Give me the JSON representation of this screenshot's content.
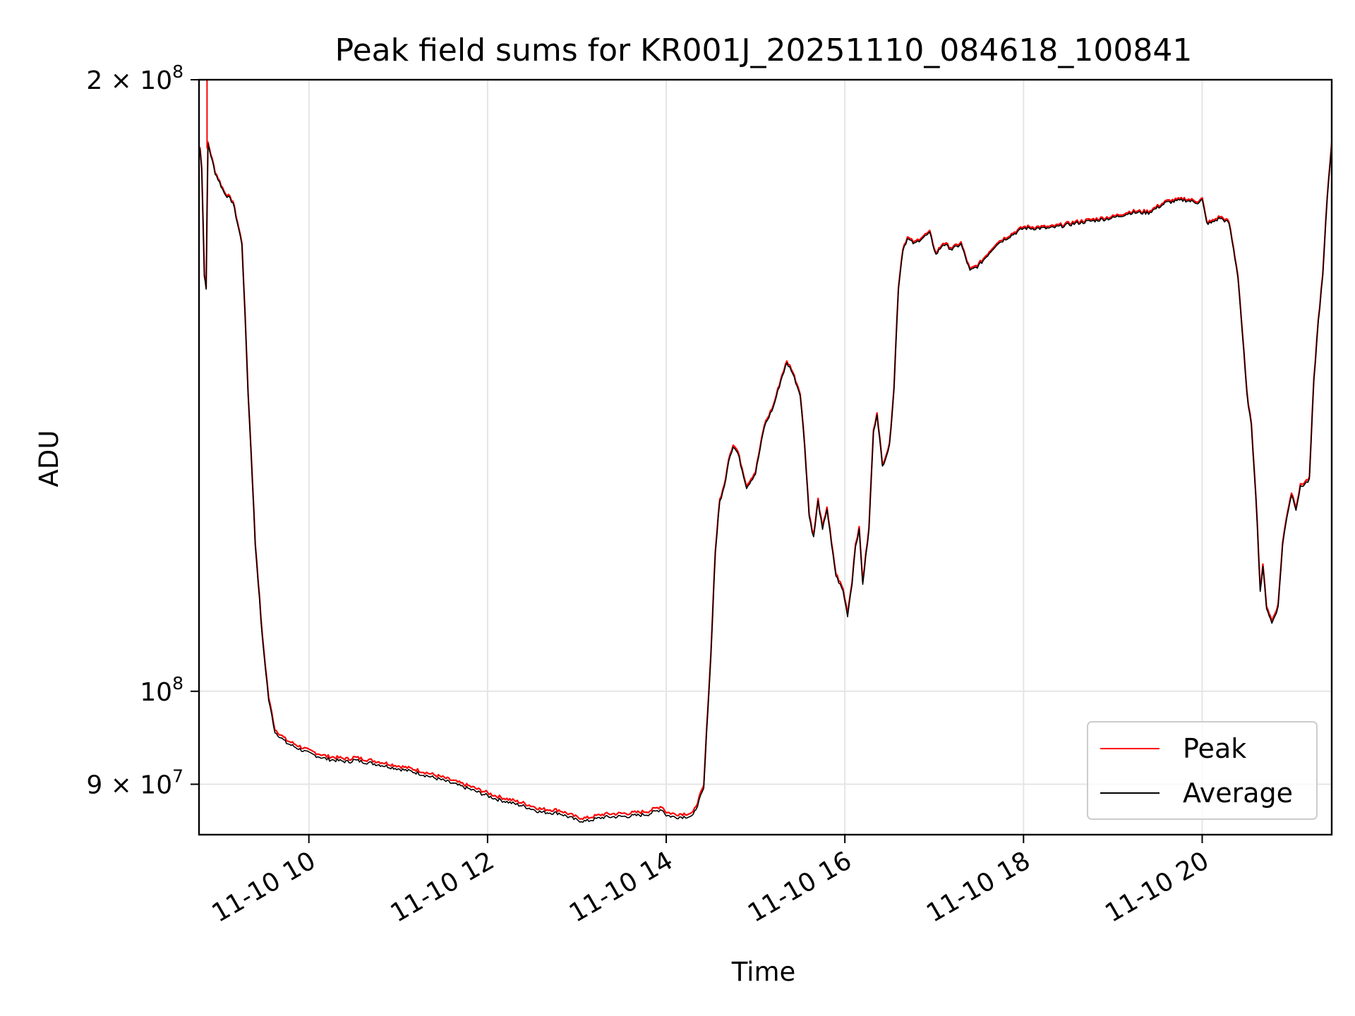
{
  "chart_data": {
    "type": "line",
    "title": "Peak field sums for KR001J_20251110_084618_100841",
    "xlabel": "Time",
    "ylabel": "ADU",
    "yscale": "log",
    "ylim": [
      85000000,
      200000000
    ],
    "xlim": [
      8.77,
      21.45
    ],
    "grid": true,
    "legend_position": "lower-right",
    "x_ticks": [
      {
        "value": 10,
        "label": "11-10 10"
      },
      {
        "value": 12,
        "label": "11-10 12"
      },
      {
        "value": 14,
        "label": "11-10 14"
      },
      {
        "value": 16,
        "label": "11-10 16"
      },
      {
        "value": 18,
        "label": "11-10 18"
      },
      {
        "value": 20,
        "label": "11-10 20"
      }
    ],
    "y_ticks": [
      {
        "value": 200000000,
        "mantissa": "2",
        "exponent": "8"
      },
      {
        "value": 100000000,
        "mantissa": "",
        "exponent": "8"
      },
      {
        "value": 90000000,
        "mantissa": "9",
        "exponent": "7"
      }
    ],
    "x_unit": "hours (2025-11-10)",
    "series": [
      {
        "name": "Peak",
        "color": "#ff0000",
        "peak_offset": 300000
      },
      {
        "name": "Average",
        "color": "#000000",
        "peak_offset": 0
      }
    ],
    "points": [
      [
        8.78,
        185000000
      ],
      [
        8.8,
        181000000
      ],
      [
        8.83,
        160000000
      ],
      [
        8.85,
        158000000
      ],
      [
        8.87,
        186000000
      ],
      [
        8.95,
        180000000
      ],
      [
        9.05,
        176000000
      ],
      [
        9.15,
        174000000
      ],
      [
        9.25,
        166000000
      ],
      [
        9.32,
        140000000
      ],
      [
        9.4,
        118000000
      ],
      [
        9.48,
        106000000
      ],
      [
        9.55,
        99000000
      ],
      [
        9.62,
        95500000
      ],
      [
        9.75,
        94300000
      ],
      [
        10.0,
        93200000
      ],
      [
        10.2,
        92600000
      ],
      [
        10.45,
        92300000
      ],
      [
        10.5,
        92500000
      ],
      [
        10.8,
        92000000
      ],
      [
        11.2,
        91200000
      ],
      [
        11.5,
        90400000
      ],
      [
        11.8,
        89500000
      ],
      [
        12.1,
        88500000
      ],
      [
        12.4,
        87800000
      ],
      [
        12.6,
        87200000
      ],
      [
        12.8,
        87100000
      ],
      [
        13.0,
        86400000
      ],
      [
        13.1,
        86300000
      ],
      [
        13.3,
        86700000
      ],
      [
        13.6,
        86800000
      ],
      [
        13.8,
        87000000
      ],
      [
        13.95,
        87500000
      ],
      [
        14.0,
        86900000
      ],
      [
        14.1,
        86700000
      ],
      [
        14.3,
        86800000
      ],
      [
        14.42,
        89500000
      ],
      [
        14.5,
        104000000
      ],
      [
        14.55,
        117000000
      ],
      [
        14.6,
        124000000
      ],
      [
        14.65,
        126000000
      ],
      [
        14.7,
        130000000
      ],
      [
        14.75,
        132000000
      ],
      [
        14.8,
        131000000
      ],
      [
        14.9,
        126000000
      ],
      [
        15.0,
        128000000
      ],
      [
        15.1,
        135000000
      ],
      [
        15.2,
        138000000
      ],
      [
        15.3,
        143000000
      ],
      [
        15.35,
        145000000
      ],
      [
        15.4,
        144000000
      ],
      [
        15.5,
        140000000
      ],
      [
        15.55,
        132000000
      ],
      [
        15.6,
        122000000
      ],
      [
        15.65,
        119000000
      ],
      [
        15.7,
        124000000
      ],
      [
        15.75,
        120000000
      ],
      [
        15.8,
        123000000
      ],
      [
        15.85,
        118000000
      ],
      [
        15.9,
        114000000
      ],
      [
        15.98,
        112000000
      ],
      [
        16.03,
        109000000
      ],
      [
        16.08,
        113000000
      ],
      [
        16.12,
        118000000
      ],
      [
        16.16,
        120000000
      ],
      [
        16.2,
        113000000
      ],
      [
        16.27,
        120000000
      ],
      [
        16.32,
        134000000
      ],
      [
        16.36,
        137000000
      ],
      [
        16.42,
        129000000
      ],
      [
        16.5,
        132000000
      ],
      [
        16.55,
        141000000
      ],
      [
        16.6,
        158000000
      ],
      [
        16.65,
        165000000
      ],
      [
        16.7,
        167000000
      ],
      [
        16.78,
        166000000
      ],
      [
        16.85,
        167000000
      ],
      [
        16.95,
        168000000
      ],
      [
        17.02,
        164000000
      ],
      [
        17.1,
        166000000
      ],
      [
        17.2,
        165000000
      ],
      [
        17.3,
        166000000
      ],
      [
        17.4,
        161000000
      ],
      [
        17.5,
        162000000
      ],
      [
        17.6,
        164000000
      ],
      [
        17.7,
        166000000
      ],
      [
        17.8,
        167000000
      ],
      [
        18.0,
        169000000
      ],
      [
        18.3,
        169000000
      ],
      [
        18.6,
        170000000
      ],
      [
        18.8,
        170500000
      ],
      [
        19.0,
        171000000
      ],
      [
        19.2,
        172000000
      ],
      [
        19.4,
        172000000
      ],
      [
        19.6,
        174000000
      ],
      [
        19.8,
        174500000
      ],
      [
        19.95,
        174000000
      ],
      [
        20.0,
        174500000
      ],
      [
        20.05,
        170000000
      ],
      [
        20.1,
        170000000
      ],
      [
        20.2,
        171000000
      ],
      [
        20.3,
        170000000
      ],
      [
        20.35,
        165000000
      ],
      [
        20.4,
        160000000
      ],
      [
        20.45,
        150000000
      ],
      [
        20.5,
        140000000
      ],
      [
        20.55,
        135000000
      ],
      [
        20.6,
        125000000
      ],
      [
        20.65,
        112000000
      ],
      [
        20.68,
        115000000
      ],
      [
        20.72,
        110000000
      ],
      [
        20.78,
        108000000
      ],
      [
        20.85,
        110000000
      ],
      [
        20.9,
        118000000
      ],
      [
        20.95,
        122000000
      ],
      [
        21.0,
        125000000
      ],
      [
        21.05,
        123000000
      ],
      [
        21.1,
        126000000
      ],
      [
        21.2,
        127000000
      ],
      [
        21.25,
        142000000
      ],
      [
        21.3,
        152000000
      ],
      [
        21.35,
        160000000
      ],
      [
        21.4,
        175000000
      ],
      [
        21.45,
        186000000
      ]
    ]
  }
}
